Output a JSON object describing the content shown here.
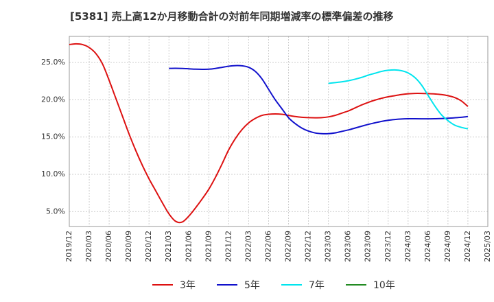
{
  "title": "[5381]  売上高12か月移動合計の対前年同期増減率の標準偏差の推移",
  "chart_data": {
    "type": "line",
    "title": "[5381]  売上高12か月移動合計の対前年同期増減率の標準偏差の推移",
    "xlabel": "",
    "ylabel": "",
    "x_ticks": [
      "2019/12",
      "2020/03",
      "2020/06",
      "2020/09",
      "2020/12",
      "2021/03",
      "2021/06",
      "2021/09",
      "2021/12",
      "2022/03",
      "2022/06",
      "2022/09",
      "2022/12",
      "2023/03",
      "2023/06",
      "2023/09",
      "2023/12",
      "2024/03",
      "2024/06",
      "2024/09",
      "2024/12",
      "2025/03"
    ],
    "y_ticks": [
      "5.0%",
      "10.0%",
      "15.0%",
      "20.0%",
      "25.0%"
    ],
    "y_tick_values": [
      5,
      10,
      15,
      20,
      25
    ],
    "ylim": [
      3.0,
      28.5
    ],
    "xlim": [
      "2019/12",
      "2025/03"
    ],
    "grid": true,
    "legend_position": "bottom",
    "series": [
      {
        "name": "3年",
        "color": "#dd1111",
        "points": [
          [
            "2019/12",
            27.4
          ],
          [
            "2020/01",
            27.5
          ],
          [
            "2020/02",
            27.4
          ],
          [
            "2020/03",
            27.0
          ],
          [
            "2020/04",
            26.2
          ],
          [
            "2020/05",
            24.8
          ],
          [
            "2020/06",
            22.6
          ],
          [
            "2020/07",
            20.2
          ],
          [
            "2020/08",
            17.8
          ],
          [
            "2020/09",
            15.4
          ],
          [
            "2020/10",
            13.2
          ],
          [
            "2020/11",
            11.2
          ],
          [
            "2020/12",
            9.4
          ],
          [
            "2020/13",
            7.8
          ],
          [
            "2021/02",
            6.2
          ],
          [
            "2021/03",
            4.7
          ],
          [
            "2021/04",
            3.7
          ],
          [
            "2021/05",
            3.6
          ],
          [
            "2021/06",
            4.4
          ],
          [
            "2021/07",
            5.5
          ],
          [
            "2021/08",
            6.7
          ],
          [
            "2021/09",
            8.0
          ],
          [
            "2021/10",
            9.6
          ],
          [
            "2021/11",
            11.4
          ],
          [
            "2021/12",
            13.3
          ],
          [
            "2022/01",
            14.8
          ],
          [
            "2022/02",
            16.0
          ],
          [
            "2022/03",
            16.9
          ],
          [
            "2022/04",
            17.5
          ],
          [
            "2022/05",
            17.9
          ],
          [
            "2022/06",
            18.05
          ],
          [
            "2022/07",
            18.1
          ],
          [
            "2022/08",
            18.05
          ],
          [
            "2022/09",
            17.9
          ],
          [
            "2022/10",
            17.75
          ],
          [
            "2022/11",
            17.65
          ],
          [
            "2022/12",
            17.6
          ],
          [
            "2023/01",
            17.58
          ],
          [
            "2023/02",
            17.6
          ],
          [
            "2023/03",
            17.7
          ],
          [
            "2023/04",
            17.9
          ],
          [
            "2023/05",
            18.2
          ],
          [
            "2023/06",
            18.5
          ],
          [
            "2023/07",
            18.9
          ],
          [
            "2023/08",
            19.3
          ],
          [
            "2023/09",
            19.65
          ],
          [
            "2023/10",
            19.95
          ],
          [
            "2023/11",
            20.2
          ],
          [
            "2023/12",
            20.4
          ],
          [
            "2024/01",
            20.55
          ],
          [
            "2024/02",
            20.7
          ],
          [
            "2024/03",
            20.8
          ],
          [
            "2024/04",
            20.85
          ],
          [
            "2024/05",
            20.85
          ],
          [
            "2024/06",
            20.82
          ],
          [
            "2024/07",
            20.78
          ],
          [
            "2024/08",
            20.7
          ],
          [
            "2024/09",
            20.55
          ],
          [
            "2024/10",
            20.3
          ],
          [
            "2024/11",
            19.85
          ],
          [
            "2024/12",
            19.1
          ]
        ]
      },
      {
        "name": "5年",
        "color": "#1111cc",
        "points": [
          [
            "2021/03",
            24.2
          ],
          [
            "2021/04",
            24.22
          ],
          [
            "2021/05",
            24.2
          ],
          [
            "2021/06",
            24.15
          ],
          [
            "2021/07",
            24.1
          ],
          [
            "2021/08",
            24.08
          ],
          [
            "2021/09",
            24.1
          ],
          [
            "2021/10",
            24.2
          ],
          [
            "2021/11",
            24.35
          ],
          [
            "2021/12",
            24.5
          ],
          [
            "2022/01",
            24.58
          ],
          [
            "2022/02",
            24.55
          ],
          [
            "2022/03",
            24.35
          ],
          [
            "2022/04",
            23.8
          ],
          [
            "2022/05",
            22.8
          ],
          [
            "2022/06",
            21.4
          ],
          [
            "2022/07",
            20.0
          ],
          [
            "2022/08",
            18.8
          ],
          [
            "2022/09",
            17.6
          ],
          [
            "2022/10",
            16.8
          ],
          [
            "2022/11",
            16.2
          ],
          [
            "2022/12",
            15.8
          ],
          [
            "2023/01",
            15.55
          ],
          [
            "2023/02",
            15.45
          ],
          [
            "2023/03",
            15.45
          ],
          [
            "2023/04",
            15.55
          ],
          [
            "2023/05",
            15.75
          ],
          [
            "2023/06",
            15.95
          ],
          [
            "2023/07",
            16.2
          ],
          [
            "2023/08",
            16.45
          ],
          [
            "2023/09",
            16.7
          ],
          [
            "2023/10",
            16.9
          ],
          [
            "2023/11",
            17.1
          ],
          [
            "2023/12",
            17.25
          ],
          [
            "2024/01",
            17.35
          ],
          [
            "2024/02",
            17.42
          ],
          [
            "2024/03",
            17.45
          ],
          [
            "2024/04",
            17.45
          ],
          [
            "2024/05",
            17.44
          ],
          [
            "2024/06",
            17.44
          ],
          [
            "2024/07",
            17.45
          ],
          [
            "2024/08",
            17.48
          ],
          [
            "2024/09",
            17.52
          ],
          [
            "2024/10",
            17.58
          ],
          [
            "2024/11",
            17.65
          ],
          [
            "2024/12",
            17.75
          ]
        ]
      },
      {
        "name": "7年",
        "color": "#00e5ee",
        "points": [
          [
            "2023/03",
            22.2
          ],
          [
            "2023/04",
            22.3
          ],
          [
            "2023/05",
            22.4
          ],
          [
            "2023/06",
            22.55
          ],
          [
            "2023/07",
            22.75
          ],
          [
            "2023/08",
            23.0
          ],
          [
            "2023/09",
            23.3
          ],
          [
            "2023/10",
            23.55
          ],
          [
            "2023/11",
            23.8
          ],
          [
            "2023/12",
            23.95
          ],
          [
            "2024/01",
            24.0
          ],
          [
            "2024/02",
            23.9
          ],
          [
            "2024/03",
            23.6
          ],
          [
            "2024/04",
            23.0
          ],
          [
            "2024/05",
            22.0
          ],
          [
            "2024/06",
            20.6
          ],
          [
            "2024/07",
            19.2
          ],
          [
            "2024/08",
            18.0
          ],
          [
            "2024/09",
            17.2
          ],
          [
            "2024/10",
            16.6
          ],
          [
            "2024/11",
            16.3
          ],
          [
            "2024/12",
            16.1
          ]
        ]
      },
      {
        "name": "10年",
        "color": "#228B22",
        "points": []
      }
    ]
  }
}
